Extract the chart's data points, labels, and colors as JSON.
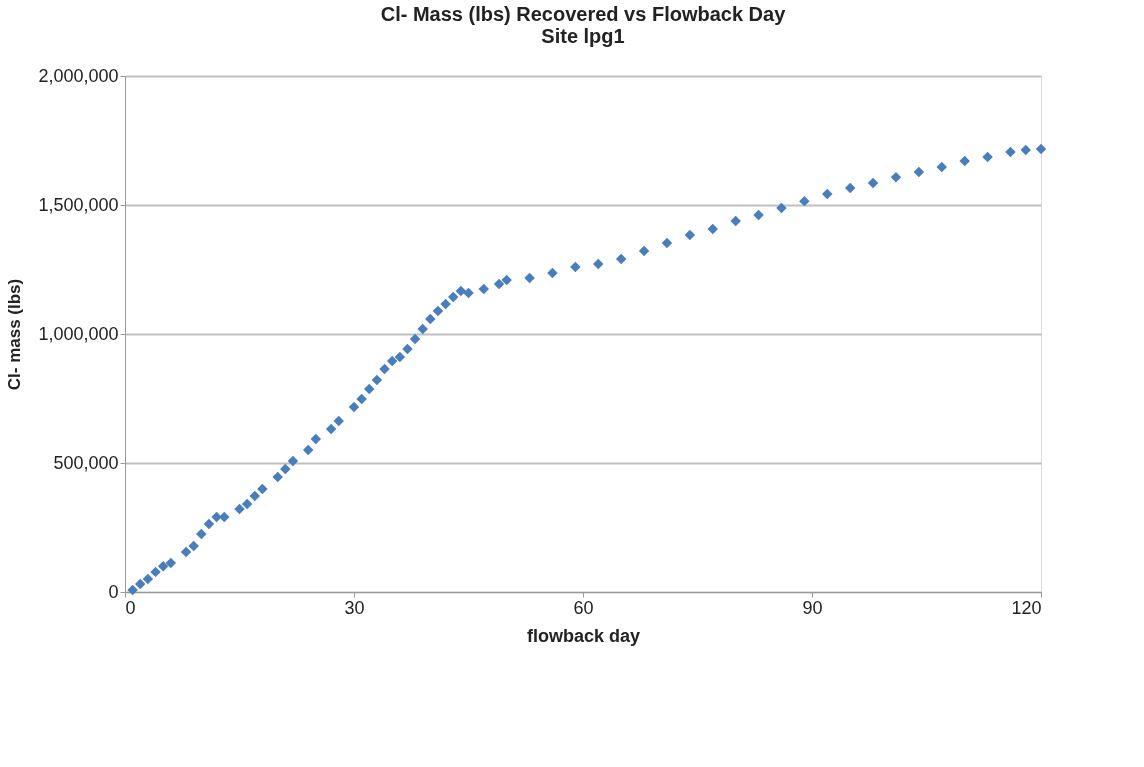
{
  "chart_data": {
    "type": "scatter",
    "title": "Cl- Mass (lbs) Recovered vs Flowback Day",
    "subtitle": "Site lpg1",
    "xlabel": "flowback day",
    "ylabel": "Cl- mass (lbs)",
    "x": [
      1,
      2,
      3,
      4,
      5,
      6,
      8,
      9,
      10,
      11,
      12,
      13,
      15,
      16,
      17,
      18,
      20,
      21,
      22,
      24,
      25,
      27,
      28,
      30,
      31,
      32,
      33,
      34,
      35,
      36,
      37,
      38,
      39,
      40,
      41,
      42,
      43,
      44,
      45,
      47,
      49,
      50,
      53,
      56,
      59,
      62,
      65,
      68,
      71,
      74,
      77,
      80,
      83,
      86,
      89,
      92,
      95,
      98,
      101,
      104,
      107,
      110,
      113,
      116,
      118,
      120
    ],
    "series": [
      {
        "color": "#4a7ebb",
        "values": [
          8000,
          31000,
          50000,
          78000,
          100000,
          112000,
          155000,
          178000,
          225000,
          264000,
          291000,
          291000,
          322000,
          341000,
          372000,
          399000,
          446000,
          477000,
          508000,
          550000,
          593000,
          632000,
          663000,
          717000,
          748000,
          787000,
          822000,
          864000,
          895000,
          911000,
          942000,
          981000,
          1019000,
          1058000,
          1089000,
          1116000,
          1143000,
          1167000,
          1159000,
          1174000,
          1194000,
          1209000,
          1217000,
          1236000,
          1260000,
          1271000,
          1291000,
          1322000,
          1353000,
          1384000,
          1407000,
          1438000,
          1461000,
          1488000,
          1515000,
          1543000,
          1566000,
          1585000,
          1608000,
          1628000,
          1647000,
          1671000,
          1686000,
          1705000,
          1713000,
          1717000
        ]
      }
    ],
    "xlim": [
      0,
      120
    ],
    "xticks": [
      0,
      30,
      60,
      90,
      120
    ],
    "ylim": [
      0,
      2000000
    ],
    "yticks": [
      {
        "value": 0,
        "label": "0"
      },
      {
        "value": 500000,
        "label": "500,000"
      },
      {
        "value": 1000000,
        "label": "1,000,000"
      },
      {
        "value": 1500000,
        "label": "1,500,000"
      },
      {
        "value": 2000000,
        "label": "2,000,000"
      }
    ],
    "grid": "y",
    "legend": false,
    "marker": "diamond"
  }
}
